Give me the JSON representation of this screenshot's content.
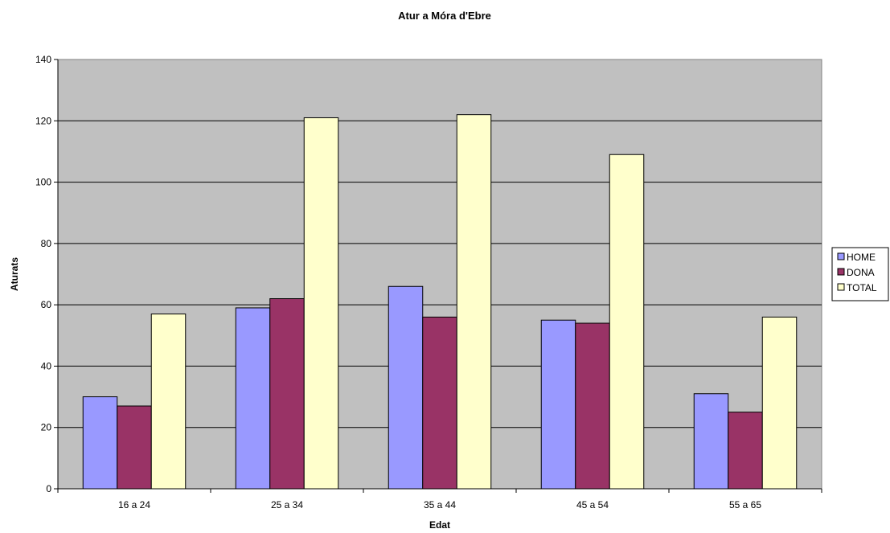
{
  "chart_data": {
    "type": "bar",
    "title": "Atur a Móra d'Ebre",
    "xlabel": "Edat",
    "ylabel": "Aturats",
    "categories": [
      "16 a 24",
      "25 a 34",
      "35 a 44",
      "45 a 54",
      "55 a 65"
    ],
    "series": [
      {
        "name": "HOME",
        "color": "#9999ff",
        "values": [
          30,
          59,
          66,
          55,
          31
        ]
      },
      {
        "name": "DONA",
        "color": "#993366",
        "values": [
          27,
          62,
          56,
          54,
          25
        ]
      },
      {
        "name": "TOTAL",
        "color": "#ffffcc",
        "values": [
          57,
          121,
          122,
          109,
          56
        ]
      }
    ],
    "ylim": [
      0,
      140
    ],
    "yticks": [
      0,
      20,
      40,
      60,
      80,
      100,
      120,
      140
    ],
    "grid": true,
    "plot_background": "#c0c0c0",
    "legend_position": "right"
  }
}
